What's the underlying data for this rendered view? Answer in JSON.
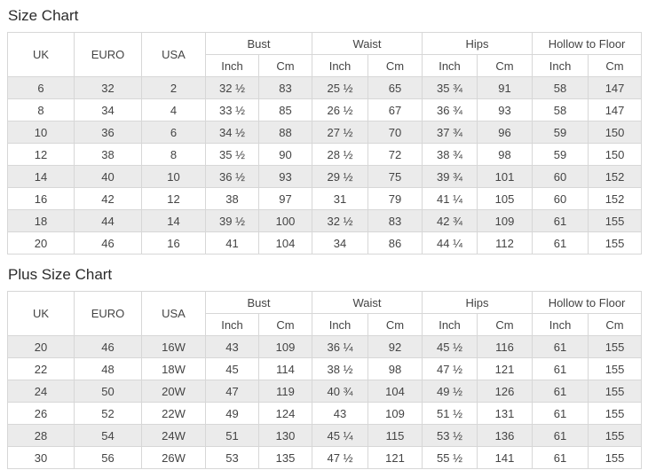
{
  "colors": {
    "stripe_row": "#ebebeb",
    "table_border": "#d7d7d7",
    "cell_text": "#444444",
    "title_text": "#2b2b2b"
  },
  "size_chart": {
    "title": "Size Chart",
    "header": {
      "uk": "UK",
      "euro": "EURO",
      "usa": "USA",
      "bust": "Bust",
      "waist": "Waist",
      "hips": "Hips",
      "hollow_to_floor": "Hollow to Floor",
      "inch": "Inch",
      "cm": "Cm"
    },
    "rows": [
      [
        "6",
        "32",
        "2",
        "32 ½",
        "83",
        "25 ½",
        "65",
        "35 ¾",
        "91",
        "58",
        "147"
      ],
      [
        "8",
        "34",
        "4",
        "33 ½",
        "85",
        "26 ½",
        "67",
        "36 ¾",
        "93",
        "58",
        "147"
      ],
      [
        "10",
        "36",
        "6",
        "34 ½",
        "88",
        "27 ½",
        "70",
        "37 ¾",
        "96",
        "59",
        "150"
      ],
      [
        "12",
        "38",
        "8",
        "35 ½",
        "90",
        "28 ½",
        "72",
        "38 ¾",
        "98",
        "59",
        "150"
      ],
      [
        "14",
        "40",
        "10",
        "36 ½",
        "93",
        "29 ½",
        "75",
        "39 ¾",
        "101",
        "60",
        "152"
      ],
      [
        "16",
        "42",
        "12",
        "38",
        "97",
        "31",
        "79",
        "41 ¼",
        "105",
        "60",
        "152"
      ],
      [
        "18",
        "44",
        "14",
        "39 ½",
        "100",
        "32 ½",
        "83",
        "42 ¾",
        "109",
        "61",
        "155"
      ],
      [
        "20",
        "46",
        "16",
        "41",
        "104",
        "34",
        "86",
        "44 ¼",
        "112",
        "61",
        "155"
      ]
    ]
  },
  "plus_size_chart": {
    "title": "Plus Size Chart",
    "header": {
      "uk": "UK",
      "euro": "EURO",
      "usa": "USA",
      "bust": "Bust",
      "waist": "Waist",
      "hips": "Hips",
      "hollow_to_floor": "Hollow to Floor",
      "inch": "Inch",
      "cm": "Cm"
    },
    "rows": [
      [
        "20",
        "46",
        "16W",
        "43",
        "109",
        "36 ¼",
        "92",
        "45 ½",
        "116",
        "61",
        "155"
      ],
      [
        "22",
        "48",
        "18W",
        "45",
        "114",
        "38 ½",
        "98",
        "47 ½",
        "121",
        "61",
        "155"
      ],
      [
        "24",
        "50",
        "20W",
        "47",
        "119",
        "40 ¾",
        "104",
        "49 ½",
        "126",
        "61",
        "155"
      ],
      [
        "26",
        "52",
        "22W",
        "49",
        "124",
        "43",
        "109",
        "51 ½",
        "131",
        "61",
        "155"
      ],
      [
        "28",
        "54",
        "24W",
        "51",
        "130",
        "45 ¼",
        "115",
        "53 ½",
        "136",
        "61",
        "155"
      ],
      [
        "30",
        "56",
        "26W",
        "53",
        "135",
        "47 ½",
        "121",
        "55 ½",
        "141",
        "61",
        "155"
      ]
    ]
  }
}
